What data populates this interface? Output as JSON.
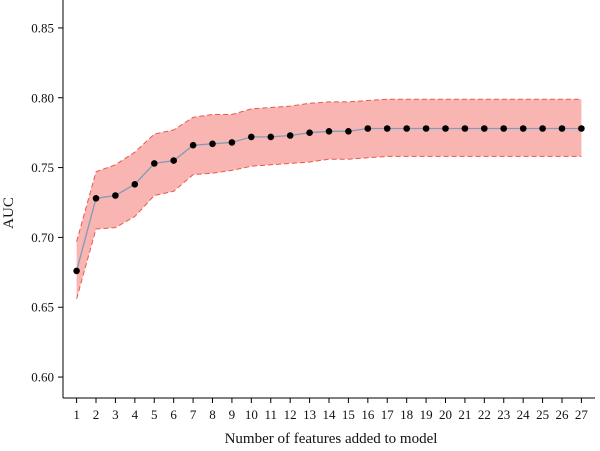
{
  "chart_data": {
    "type": "line",
    "title": "",
    "xlabel": "Number of features added to model",
    "ylabel": "AUC",
    "x": [
      1,
      2,
      3,
      4,
      5,
      6,
      7,
      8,
      9,
      10,
      11,
      12,
      13,
      14,
      15,
      16,
      17,
      18,
      19,
      20,
      21,
      22,
      23,
      24,
      25,
      26,
      27
    ],
    "xlim": [
      0.3,
      27.7
    ],
    "ylim": [
      0.585,
      0.87
    ],
    "yticks": [
      0.6,
      0.65,
      0.7,
      0.75,
      0.8,
      0.85
    ],
    "ytick_labels": [
      "0.60",
      "0.65",
      "0.70",
      "0.75",
      "0.80",
      "0.85"
    ],
    "grid": false,
    "series": [
      {
        "values": [
          0.676,
          0.728,
          0.73,
          0.738,
          0.753,
          0.755,
          0.766,
          0.767,
          0.768,
          0.772,
          0.772,
          0.773,
          0.775,
          0.776,
          0.776,
          0.778,
          0.778,
          0.778,
          0.778,
          0.778,
          0.778,
          0.778,
          0.778,
          0.778,
          0.778,
          0.778,
          0.778
        ],
        "upper": [
          0.697,
          0.747,
          0.752,
          0.761,
          0.774,
          0.777,
          0.786,
          0.788,
          0.788,
          0.792,
          0.793,
          0.794,
          0.796,
          0.797,
          0.797,
          0.798,
          0.799,
          0.799,
          0.799,
          0.799,
          0.799,
          0.799,
          0.799,
          0.799,
          0.799,
          0.799,
          0.799
        ],
        "lower": [
          0.656,
          0.706,
          0.707,
          0.715,
          0.73,
          0.733,
          0.745,
          0.746,
          0.748,
          0.751,
          0.752,
          0.753,
          0.754,
          0.756,
          0.756,
          0.757,
          0.758,
          0.758,
          0.758,
          0.758,
          0.758,
          0.758,
          0.758,
          0.758,
          0.758,
          0.758,
          0.758
        ]
      }
    ],
    "colors": {
      "band_fill": "#f9b5b1",
      "band_edge": "#e8584f",
      "line": "#7f9cb8",
      "point": "#000000",
      "axis": "#000000"
    }
  }
}
